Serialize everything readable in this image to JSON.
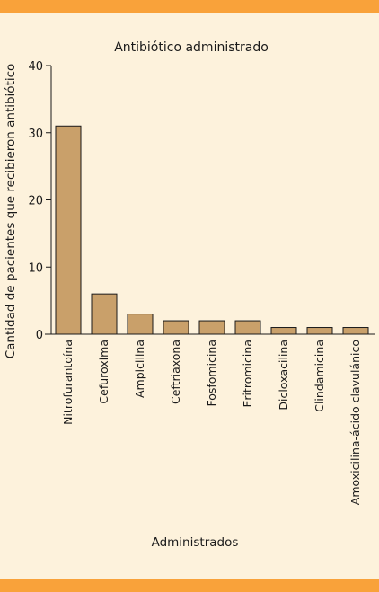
{
  "colors": {
    "background": "#fdf2dc",
    "band": "#f9a23a",
    "bar": "#c9a06a",
    "bar_stroke": "#1a1a1a"
  },
  "chart_data": {
    "type": "bar",
    "title": "Antibiótico administrado",
    "xlabel": "Administrados",
    "ylabel": "Cantidad de pacientes que recibieron antibiótico",
    "ylim": [
      0,
      40
    ],
    "yticks": [
      0,
      10,
      20,
      30,
      40
    ],
    "grid": false,
    "categories": [
      "Nitrofurantoína",
      "Cefuroxima",
      "Ampicilina",
      "Ceftriaxona",
      "Fosfomicina",
      "Eritromicina",
      "Dicloxacilina",
      "Clindamicina",
      "Amoxicilina-ácido clavulánico"
    ],
    "values": [
      31,
      6,
      3,
      2,
      2,
      2,
      1,
      1,
      1
    ]
  }
}
